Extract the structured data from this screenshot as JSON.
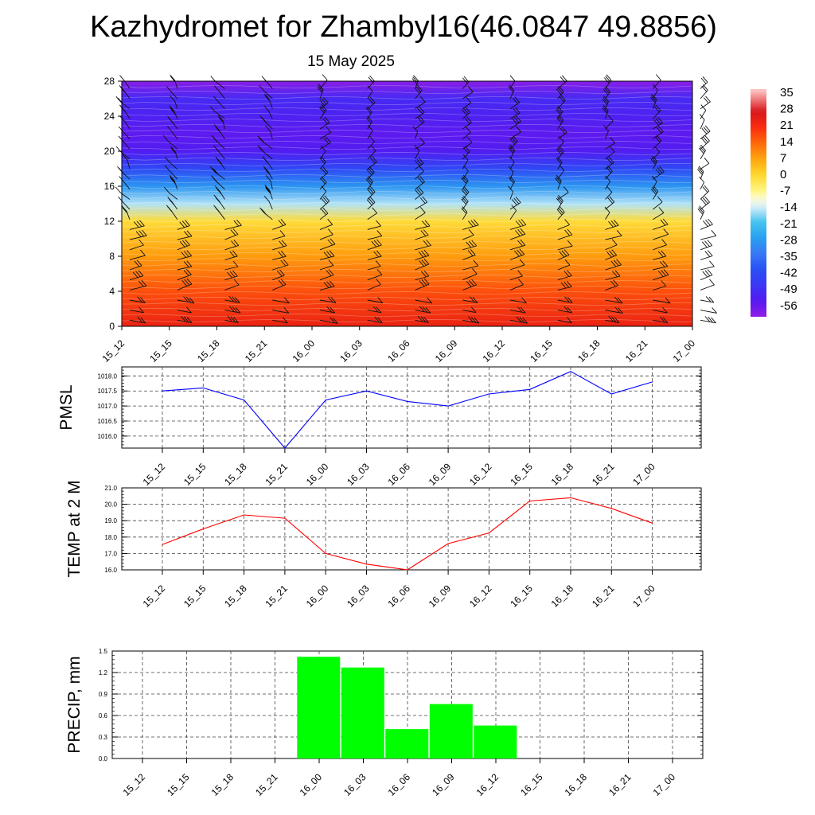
{
  "title": "Kazhydromet for Zhambyl16(46.0847 49.8856)",
  "subtitle": "15 May 2025",
  "times": [
    "15_12",
    "15_15",
    "15_18",
    "15_21",
    "16_00",
    "16_03",
    "16_06",
    "16_09",
    "16_12",
    "16_15",
    "16_18",
    "16_21",
    "17_00"
  ],
  "colorbar": {
    "labels": [
      "35",
      "28",
      "21",
      "14",
      "7",
      "0",
      "-7",
      "-14",
      "-21",
      "-28",
      "-35",
      "-42",
      "-49",
      "-56"
    ],
    "range": [
      -63,
      38
    ]
  },
  "chart_data": [
    {
      "type": "heatmap",
      "title": "",
      "ylabel": "",
      "y_ticks": [
        "0",
        "4",
        "8",
        "12",
        "16",
        "20",
        "24",
        "28"
      ],
      "ylim": [
        0,
        28
      ],
      "x": [
        "15_12",
        "15_15",
        "15_18",
        "15_21",
        "16_00",
        "16_03",
        "16_06",
        "16_09",
        "16_12",
        "16_15",
        "16_18",
        "16_21",
        "17_00"
      ],
      "levels": [
        0,
        4,
        8,
        12,
        14,
        16,
        18,
        20,
        22,
        24,
        26,
        28
      ],
      "temperature_profile": [
        24,
        17,
        8,
        -1,
        -16,
        -30,
        -44,
        -55,
        -57,
        -54,
        -52,
        -62
      ],
      "wind_barbs": "present"
    },
    {
      "type": "line",
      "ylabel": "PMSL",
      "x": [
        "15_12",
        "15_15",
        "15_18",
        "15_21",
        "16_00",
        "16_03",
        "16_06",
        "16_09",
        "16_12",
        "16_15",
        "16_18",
        "16_21",
        "17_00"
      ],
      "values": [
        1017.5,
        1017.6,
        1017.2,
        1015.6,
        1017.2,
        1017.5,
        1017.15,
        1017.0,
        1017.4,
        1017.55,
        1018.15,
        1017.4,
        1017.8
      ],
      "y_ticks": [
        "1016.0",
        "1016.5",
        "1017.0",
        "1017.5",
        "1018.0"
      ],
      "ylim": [
        1015.6,
        1018.3
      ],
      "color": "#0000ff",
      "grid": true
    },
    {
      "type": "line",
      "ylabel": "TEMP at 2 M",
      "x": [
        "15_12",
        "15_15",
        "15_18",
        "15_21",
        "16_00",
        "16_03",
        "16_06",
        "16_09",
        "16_12",
        "16_15",
        "16_18",
        "16_21",
        "17_00"
      ],
      "values": [
        17.55,
        18.5,
        19.35,
        19.15,
        17.0,
        16.35,
        16.0,
        17.6,
        18.25,
        20.2,
        20.4,
        19.75,
        18.85
      ],
      "y_ticks": [
        "16.0",
        "17.0",
        "18.0",
        "19.0",
        "20.0",
        "21.0"
      ],
      "ylim": [
        16.0,
        21.0
      ],
      "color": "#ff0000",
      "grid": true
    },
    {
      "type": "bar",
      "ylabel": "PRECIP, mm",
      "x": [
        "15_12",
        "15_15",
        "15_18",
        "15_21",
        "16_00",
        "16_03",
        "16_06",
        "16_09",
        "16_12",
        "16_15",
        "16_18",
        "16_21",
        "17_00"
      ],
      "values": [
        0,
        0,
        0,
        0,
        1.42,
        1.27,
        0.41,
        0.76,
        0.46,
        0,
        0,
        0,
        0
      ],
      "y_ticks": [
        "0.0",
        "0.3",
        "0.6",
        "0.9",
        "1.2",
        "1.5"
      ],
      "ylim": [
        0,
        1.5
      ],
      "color": "#00ff00",
      "grid": true
    }
  ]
}
